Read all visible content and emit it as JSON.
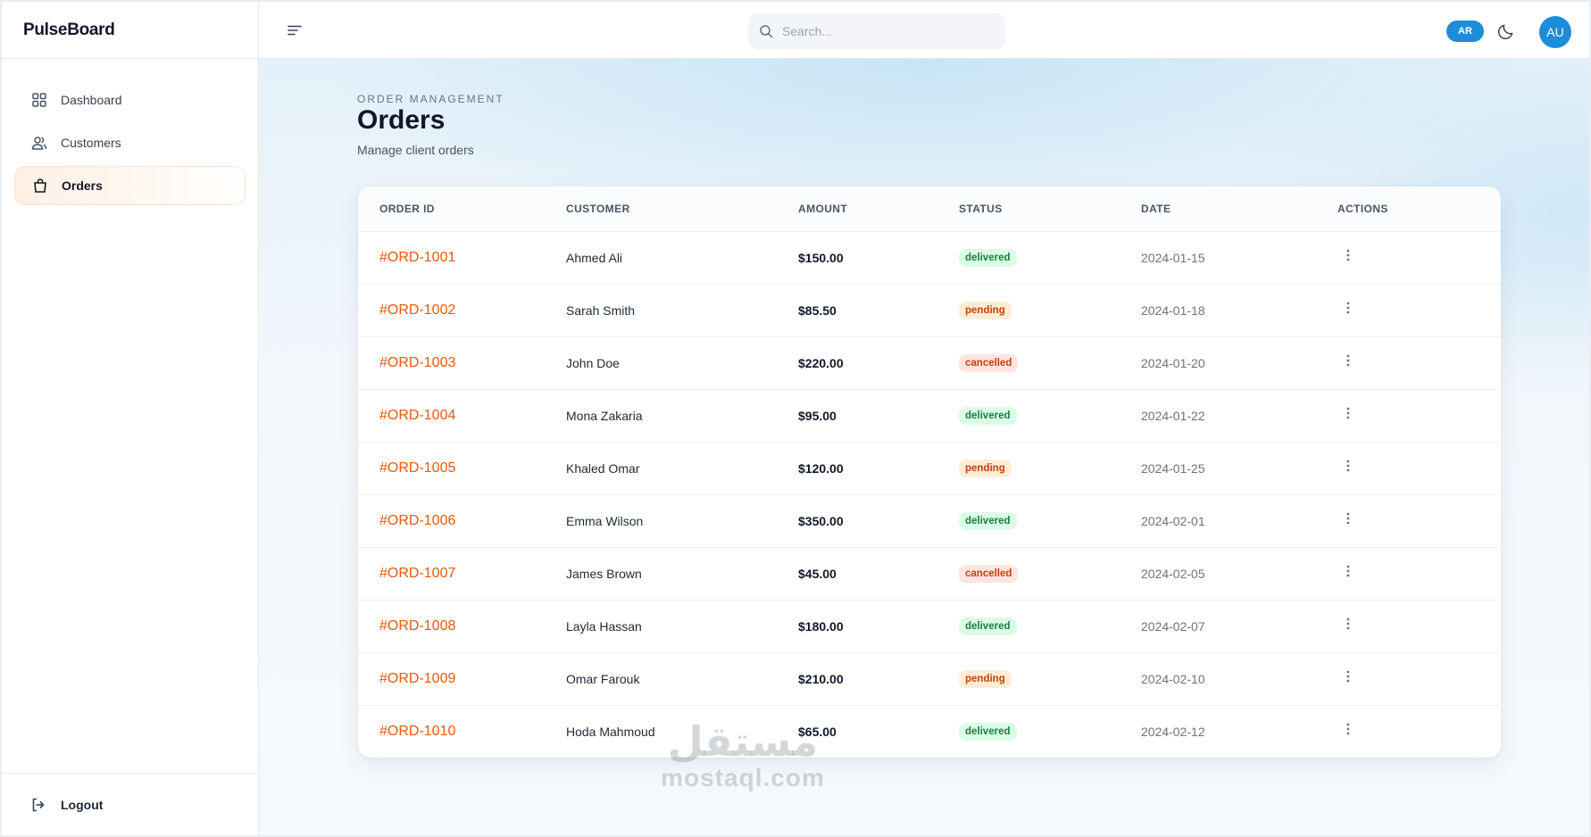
{
  "brand": "PulseBoard",
  "sidebar": {
    "items": [
      {
        "label": "Dashboard",
        "icon": "grid-icon",
        "active": false
      },
      {
        "label": "Customers",
        "icon": "users-icon",
        "active": false
      },
      {
        "label": "Orders",
        "icon": "shopping-bag-icon",
        "active": true
      }
    ],
    "logout_label": "Logout"
  },
  "header": {
    "search_placeholder": "Search...",
    "lang_label": "AR",
    "avatar_initials": "AU"
  },
  "page": {
    "eyebrow": "ORDER MANAGEMENT",
    "title": "Orders",
    "subtitle": "Manage client orders"
  },
  "table": {
    "columns": [
      "ORDER ID",
      "CUSTOMER",
      "AMOUNT",
      "STATUS",
      "DATE",
      "ACTIONS"
    ],
    "rows": [
      {
        "id": "#ORD-1001",
        "customer": "Ahmed Ali",
        "amount": "$150.00",
        "status": "delivered",
        "date": "2024-01-15"
      },
      {
        "id": "#ORD-1002",
        "customer": "Sarah Smith",
        "amount": "$85.50",
        "status": "pending",
        "date": "2024-01-18"
      },
      {
        "id": "#ORD-1003",
        "customer": "John Doe",
        "amount": "$220.00",
        "status": "cancelled",
        "date": "2024-01-20"
      },
      {
        "id": "#ORD-1004",
        "customer": "Mona Zakaria",
        "amount": "$95.00",
        "status": "delivered",
        "date": "2024-01-22"
      },
      {
        "id": "#ORD-1005",
        "customer": "Khaled Omar",
        "amount": "$120.00",
        "status": "pending",
        "date": "2024-01-25"
      },
      {
        "id": "#ORD-1006",
        "customer": "Emma Wilson",
        "amount": "$350.00",
        "status": "delivered",
        "date": "2024-02-01"
      },
      {
        "id": "#ORD-1007",
        "customer": "James Brown",
        "amount": "$45.00",
        "status": "cancelled",
        "date": "2024-02-05"
      },
      {
        "id": "#ORD-1008",
        "customer": "Layla Hassan",
        "amount": "$180.00",
        "status": "delivered",
        "date": "2024-02-07"
      },
      {
        "id": "#ORD-1009",
        "customer": "Omar Farouk",
        "amount": "$210.00",
        "status": "pending",
        "date": "2024-02-10"
      },
      {
        "id": "#ORD-1010",
        "customer": "Hoda Mahmoud",
        "amount": "$65.00",
        "status": "delivered",
        "date": "2024-02-12"
      }
    ]
  },
  "watermark": {
    "arabic": "مستقل",
    "latin": "mostaql.com"
  },
  "colors": {
    "accent": "#ea580c",
    "primary": "#1d8cd9",
    "delivered": "#15803d",
    "pending": "#c2410c"
  }
}
